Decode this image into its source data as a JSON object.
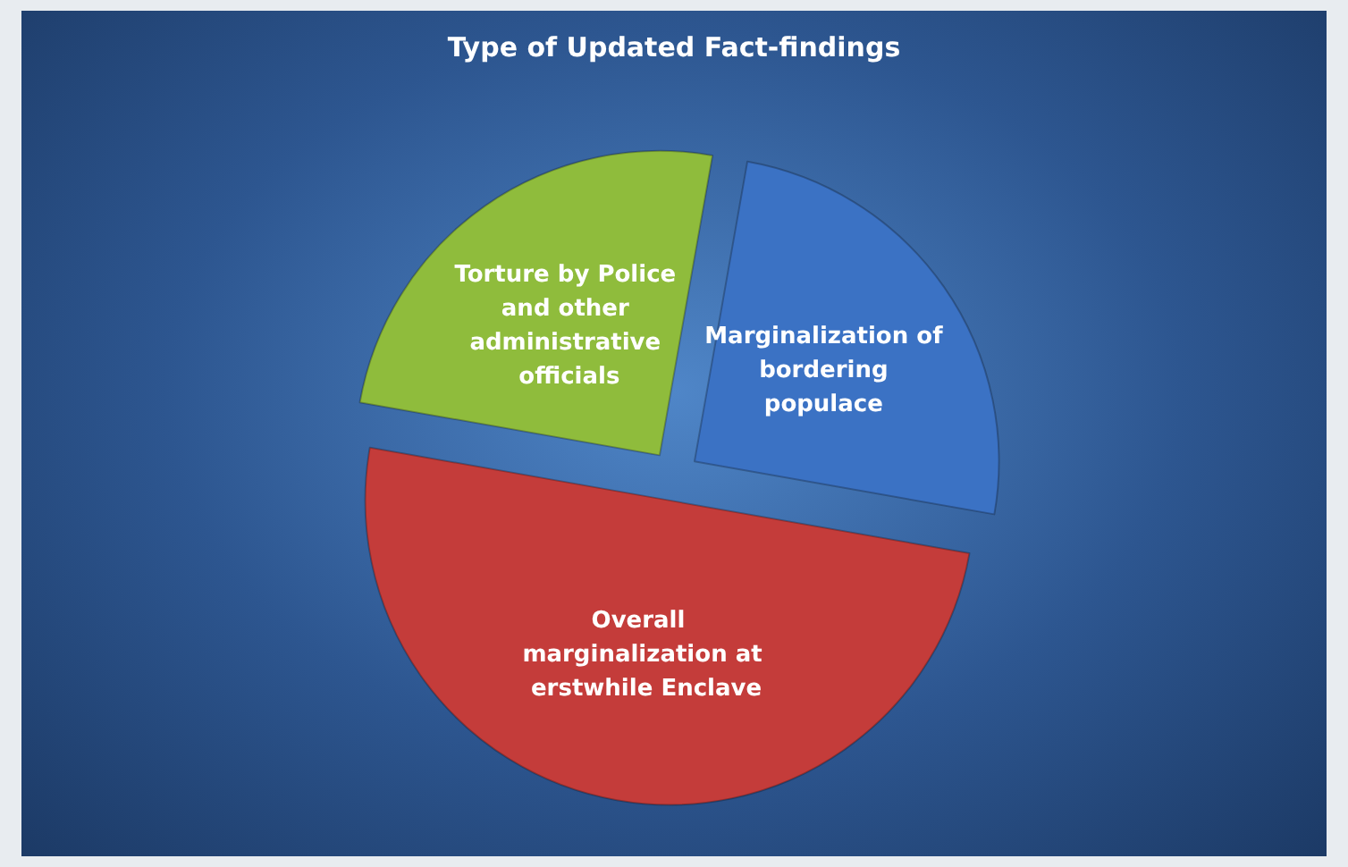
{
  "chart_data": {
    "type": "pie",
    "title": "Type of Updated Fact-findings",
    "categories": [
      "Marginalization of bordering populace",
      "Overall marginalization at erstwhile Enclave",
      "Torture by Police and other administrative officials"
    ],
    "values": [
      25,
      50,
      25
    ],
    "colors": [
      "#3b72c4",
      "#c43c3a",
      "#8fbc3c"
    ],
    "legend": false
  }
}
